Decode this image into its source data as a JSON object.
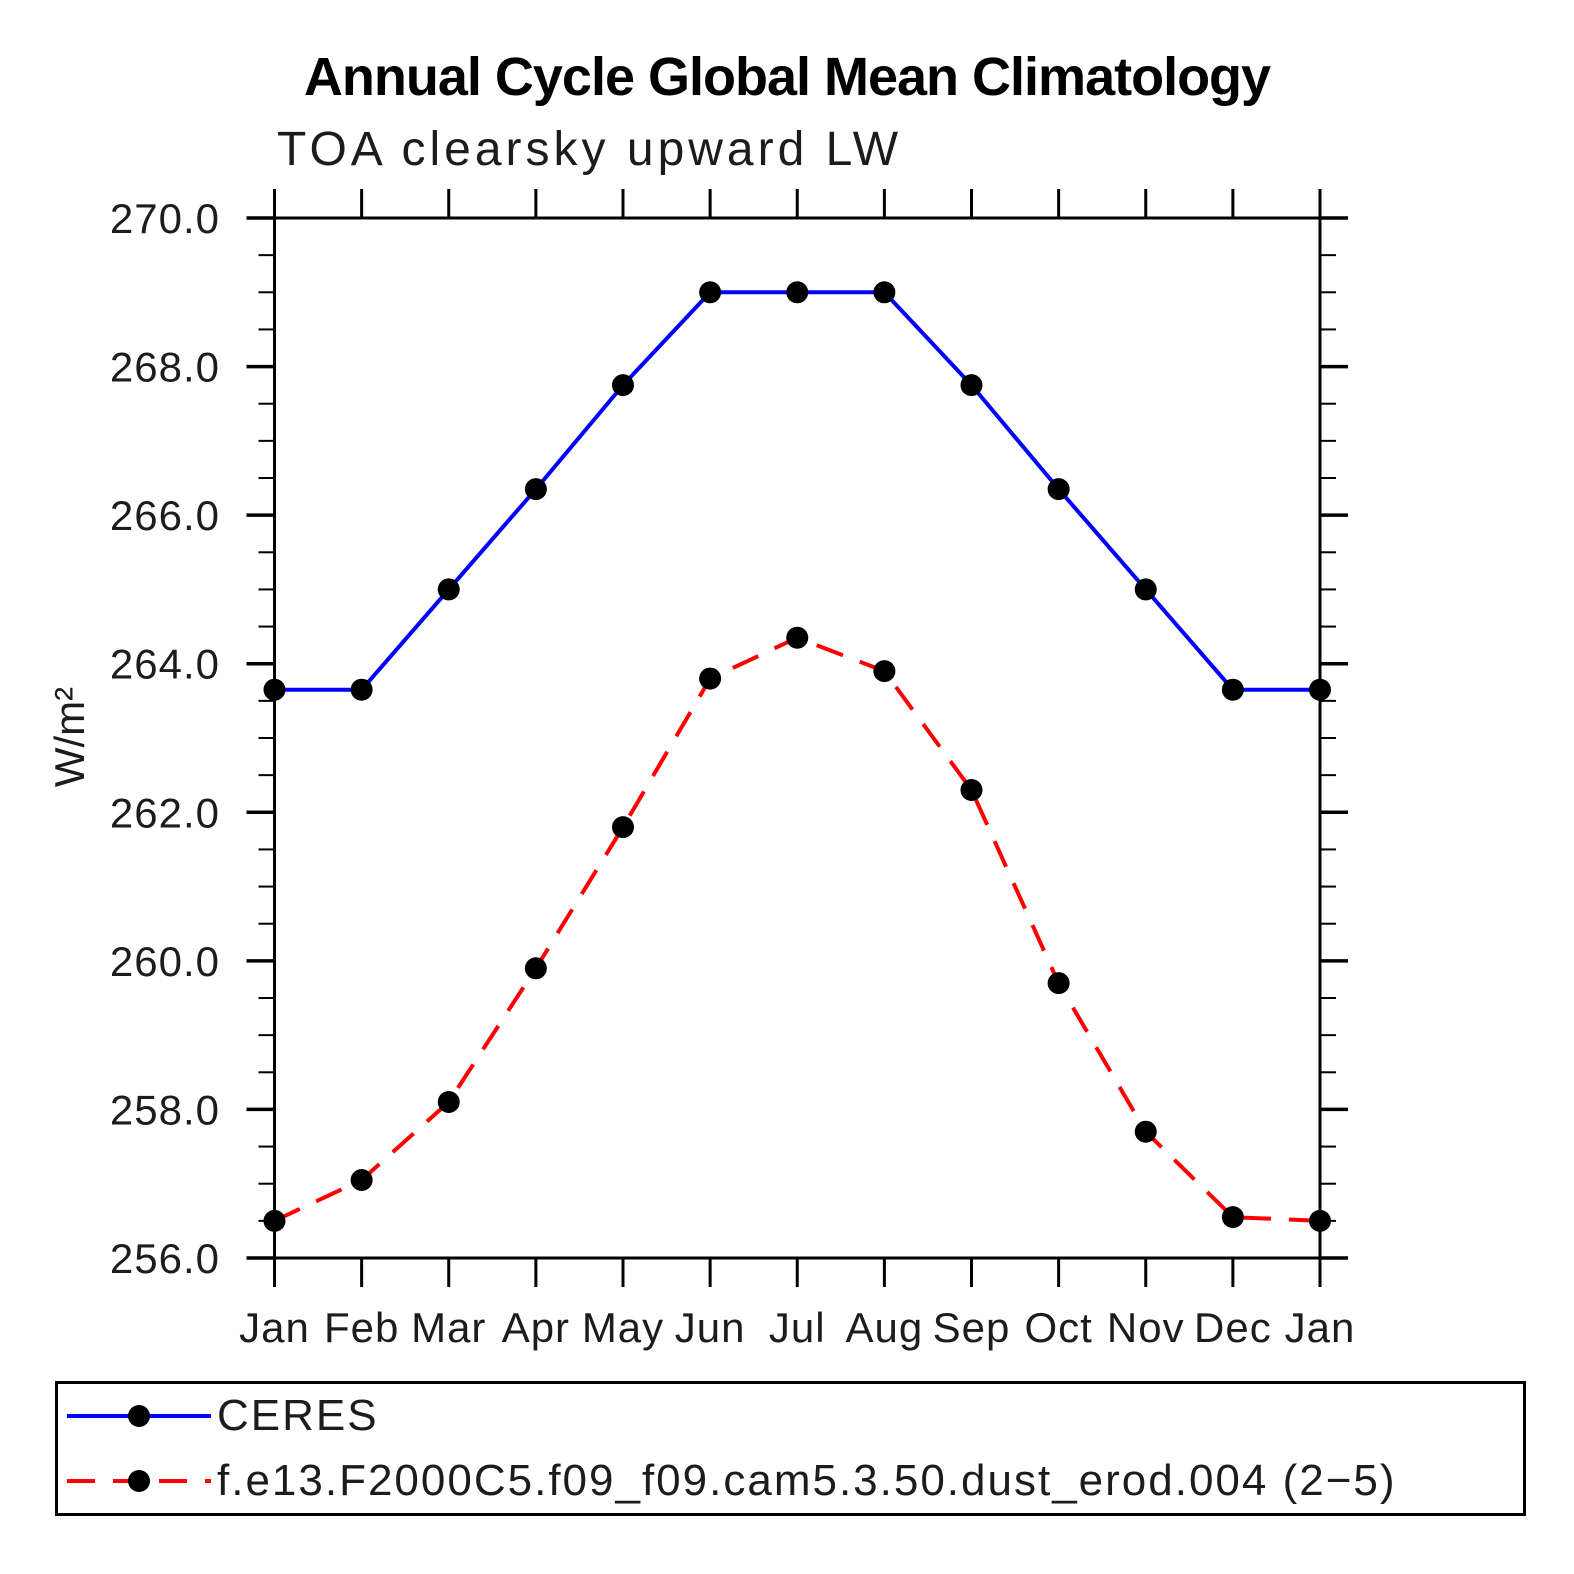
{
  "page": {
    "background": "#ffffff"
  },
  "header": {
    "title": "Annual Cycle Global Mean Climatology",
    "subtitle": "TOA clearsky upward LW"
  },
  "axes": {
    "y_title": "W/m²",
    "x_tick_labels": [
      "Jan",
      "Feb",
      "Mar",
      "Apr",
      "May",
      "Jun",
      "Jul",
      "Aug",
      "Sep",
      "Oct",
      "Nov",
      "Dec",
      "Jan"
    ],
    "y_tick_labels": [
      "256.0",
      "258.0",
      "260.0",
      "262.0",
      "264.0",
      "266.0",
      "268.0",
      "270.0"
    ]
  },
  "chart_data": {
    "type": "line",
    "title": "Annual Cycle Global Mean Climatology",
    "subtitle": "TOA clearsky upward LW",
    "ylabel": "W/m²",
    "xlabel": "",
    "categories": [
      "Jan",
      "Feb",
      "Mar",
      "Apr",
      "May",
      "Jun",
      "Jul",
      "Aug",
      "Sep",
      "Oct",
      "Nov",
      "Dec",
      "Jan"
    ],
    "series": [
      {
        "name": "CERES",
        "color": "#0000ff",
        "line_style": "solid",
        "marker": "circle",
        "marker_color": "#000000",
        "values": [
          263.65,
          263.65,
          265.0,
          266.35,
          267.75,
          269.0,
          269.0,
          269.0,
          267.75,
          266.35,
          265.0,
          263.65,
          263.65
        ]
      },
      {
        "name": "f.e13.F2000C5.f09_f09.cam5.3.50.dust_erod.004 (2−5)",
        "color": "#ff0000",
        "line_style": "dashed",
        "marker": "circle",
        "marker_color": "#000000",
        "values": [
          256.5,
          257.05,
          258.1,
          259.9,
          261.8,
          263.8,
          264.35,
          263.9,
          262.3,
          259.7,
          257.7,
          256.55,
          256.5
        ]
      }
    ],
    "ylim": [
      256.0,
      270.0
    ],
    "yticks": [
      256,
      258,
      260,
      262,
      264,
      266,
      268,
      270
    ],
    "ytick_labels": [
      "256.0",
      "258.0",
      "260.0",
      "262.0",
      "264.0",
      "266.0",
      "268.0",
      "270.0"
    ],
    "y_minor_tick_step": 0.5,
    "grid": false,
    "legend_position": "bottom-left-box"
  }
}
